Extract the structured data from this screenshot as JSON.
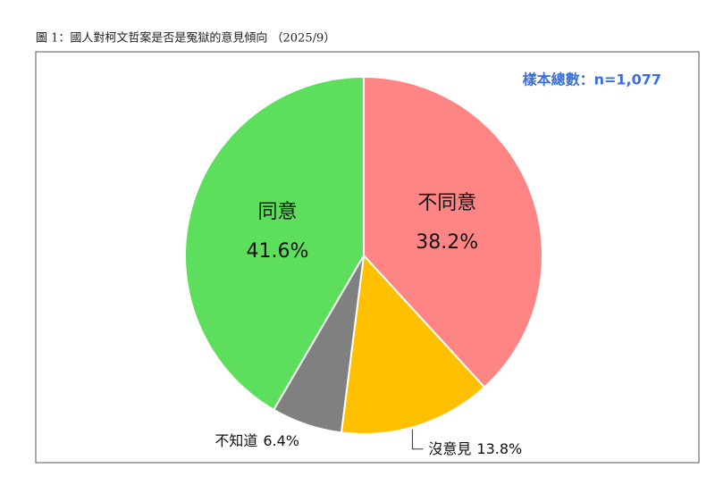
{
  "chart_data": {
    "type": "pie",
    "title": "圖 1：國人對柯文哲案是否是冤獄的意見傾向 （2025/9）",
    "annotation": "樣本總數：n=1,077",
    "categories": [
      "不同意",
      "沒意見",
      "不知道",
      "同意"
    ],
    "values": [
      38.2,
      13.8,
      6.4,
      41.6
    ],
    "value_labels": [
      "38.2%",
      "13.8%",
      "6.4%",
      "41.6%"
    ],
    "colors": [
      "#ff8585",
      "#ffc000",
      "#808080",
      "#5ddf5d"
    ]
  }
}
